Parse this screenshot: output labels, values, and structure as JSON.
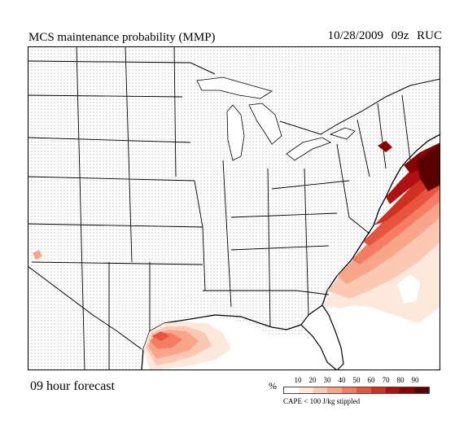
{
  "header": {
    "title": "MCS maintenance probability (MMP)",
    "date": "10/28/2009",
    "hour": "09z",
    "model": "RUC"
  },
  "footer": {
    "forecast": "09 hour forecast"
  },
  "legend": {
    "unit": "%",
    "ticks": [
      "10",
      "20",
      "30",
      "40",
      "50",
      "60",
      "70",
      "80",
      "90"
    ],
    "colors": [
      "#ffffff",
      "#fde8dc",
      "#fbc9b3",
      "#f9a58a",
      "#f47d64",
      "#e8553f",
      "#d0301f",
      "#b01010",
      "#8b0000",
      "#5a0000"
    ],
    "note": "CAPE < 100 J/kg stippled"
  },
  "colors": {
    "background": "#ffffff",
    "stipple": "#777777",
    "borders": "#000000"
  }
}
